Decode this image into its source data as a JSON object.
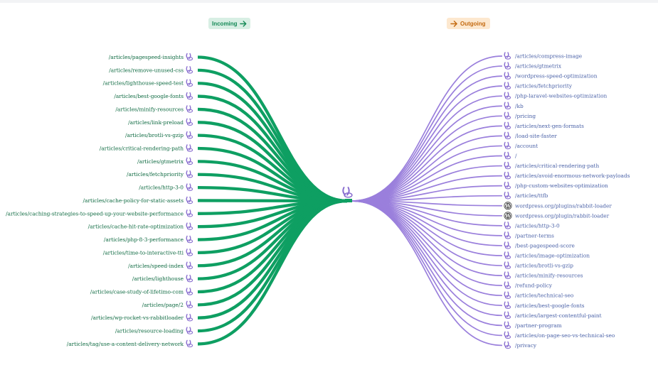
{
  "header": {
    "incoming_label": "Incoming",
    "outgoing_label": "Outgoing"
  },
  "colors": {
    "incoming": "#0e9f62",
    "outgoing": "#9a7fdc",
    "incoming_text": "#0f6b42",
    "outgoing_text": "#4c63a8"
  },
  "center_icon": "rabbit-logo-icon",
  "incoming": [
    {
      "label": "/articles/pagespeed-insights",
      "icon": "rabbit-icon"
    },
    {
      "label": "/articles/remove-unused-css",
      "icon": "rabbit-icon"
    },
    {
      "label": "/articles/lighthouse-speed-test",
      "icon": "rabbit-icon"
    },
    {
      "label": "/articles/best-google-fonts",
      "icon": "rabbit-icon"
    },
    {
      "label": "/articles/minify-resources",
      "icon": "rabbit-icon"
    },
    {
      "label": "/articles/link-preload",
      "icon": "rabbit-icon"
    },
    {
      "label": "/articles/brotli-vs-gzip",
      "icon": "rabbit-icon"
    },
    {
      "label": "/articles/critical-rendering-path",
      "icon": "rabbit-icon"
    },
    {
      "label": "/articles/gtmetrix",
      "icon": "rabbit-icon"
    },
    {
      "label": "/articles/fetchpriority",
      "icon": "rabbit-icon"
    },
    {
      "label": "/articles/http-3-0",
      "icon": "rabbit-icon"
    },
    {
      "label": "/articles/cache-policy-for-static-assets",
      "icon": "rabbit-icon"
    },
    {
      "label": "/articles/caching-strategies-to-speed-up-your-website-performance",
      "icon": "rabbit-icon"
    },
    {
      "label": "/articles/cache-hit-rate-optimization",
      "icon": "rabbit-icon"
    },
    {
      "label": "/articles/php-8-3-performance",
      "icon": "rabbit-icon"
    },
    {
      "label": "/articles/time-to-interactive-tti",
      "icon": "rabbit-icon"
    },
    {
      "label": "/articles/speed-index",
      "icon": "rabbit-icon"
    },
    {
      "label": "/articles/lighthouse",
      "icon": "rabbit-icon"
    },
    {
      "label": "/articles/case-study-of-lifetimo-com",
      "icon": "rabbit-icon"
    },
    {
      "label": "/articles/page/2",
      "icon": "rabbit-icon"
    },
    {
      "label": "/articles/wp-rocket-vs-rabbitloader",
      "icon": "rabbit-icon"
    },
    {
      "label": "/articles/resource-loading",
      "icon": "rabbit-icon"
    },
    {
      "label": "/articles/tag/use-a-content-delivery-network",
      "icon": "rabbit-icon"
    }
  ],
  "outgoing": [
    {
      "label": "/articles/compress-image",
      "icon": "rabbit-icon"
    },
    {
      "label": "/articles/gtmetrix",
      "icon": "rabbit-icon"
    },
    {
      "label": "/wordpress-speed-optimization",
      "icon": "rabbit-icon"
    },
    {
      "label": "/articles/fetchpriority",
      "icon": "rabbit-icon"
    },
    {
      "label": "/php-laravel-websites-optimization",
      "icon": "rabbit-icon"
    },
    {
      "label": "/kb",
      "icon": "rabbit-icon"
    },
    {
      "label": "/pricing",
      "icon": "rabbit-icon"
    },
    {
      "label": "/articles/next-gen-formats",
      "icon": "rabbit-icon"
    },
    {
      "label": "/load-site-faster",
      "icon": "rabbit-icon"
    },
    {
      "label": "/account",
      "icon": "rabbit-icon"
    },
    {
      "label": "/",
      "icon": "rabbit-icon"
    },
    {
      "label": "/articles/critical-rendering-path",
      "icon": "rabbit-icon"
    },
    {
      "label": "/articles/avoid-enormous-network-payloads",
      "icon": "rabbit-icon"
    },
    {
      "label": "/php-custom-websites-optimization",
      "icon": "rabbit-icon"
    },
    {
      "label": "/articles/ttfb",
      "icon": "rabbit-icon"
    },
    {
      "label": "wordpress.org/plugins/rabbit-loader",
      "icon": "wordpress-icon"
    },
    {
      "label": "wordpress.org/plugin/rabbit-loader",
      "icon": "wordpress-icon"
    },
    {
      "label": "/articles/http-3-0",
      "icon": "rabbit-icon"
    },
    {
      "label": "/partner-terms",
      "icon": "rabbit-icon"
    },
    {
      "label": "/best-pagespeed-score",
      "icon": "rabbit-icon"
    },
    {
      "label": "/articles/image-optimization",
      "icon": "rabbit-icon"
    },
    {
      "label": "/articles/brotli-vs-gzip",
      "icon": "rabbit-icon"
    },
    {
      "label": "/articles/minify-resources",
      "icon": "rabbit-icon"
    },
    {
      "label": "/refund-policy",
      "icon": "rabbit-icon"
    },
    {
      "label": "/articles/technical-seo",
      "icon": "rabbit-icon"
    },
    {
      "label": "/articles/best-google-fonts",
      "icon": "rabbit-icon"
    },
    {
      "label": "/articles/largest-contentful-paint",
      "icon": "rabbit-icon"
    },
    {
      "label": "/partner-program",
      "icon": "rabbit-icon"
    },
    {
      "label": "/articles/on-page-seo-vs-technical-seo",
      "icon": "rabbit-icon"
    },
    {
      "label": "/privacy",
      "icon": "rabbit-icon"
    }
  ]
}
